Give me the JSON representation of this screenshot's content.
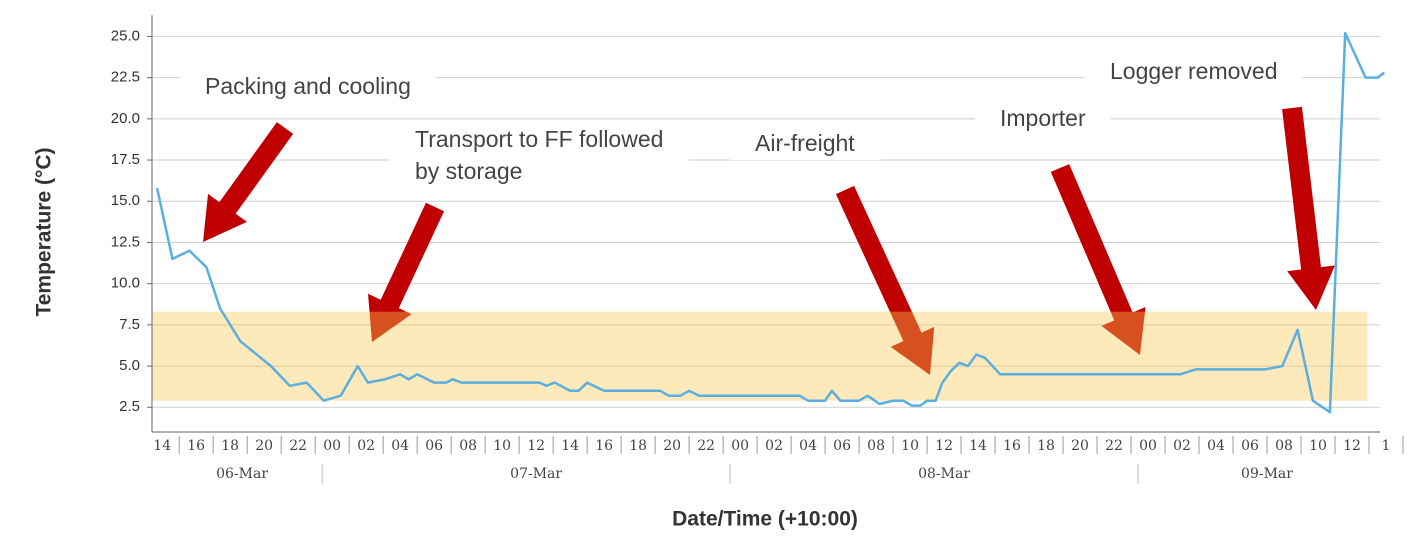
{
  "chart_data": {
    "type": "line",
    "x_label": "Date/Time (+10:00)",
    "y_label": "Temperature (°C)",
    "xlim": [
      13.4,
      86
    ],
    "ylim": [
      1,
      26.3
    ],
    "grid": true,
    "color": "#5aafe0",
    "yticks": [
      2.5,
      {
        "value": 5,
        "label": "5.0"
      },
      7.5,
      {
        "value": 10,
        "label": "10.0"
      },
      12.5,
      {
        "value": 15,
        "label": "15.0"
      },
      17.5,
      {
        "value": 20,
        "label": "20.0"
      },
      22.5,
      {
        "value": 25,
        "label": "25.0"
      }
    ],
    "xticks": [
      {
        "value": 14,
        "label": "14"
      },
      {
        "value": 16,
        "label": "16"
      },
      {
        "value": 18,
        "label": "18"
      },
      {
        "value": 20,
        "label": "20"
      },
      {
        "value": 22,
        "label": "22"
      },
      {
        "value": 24,
        "label": "00"
      },
      {
        "value": 26,
        "label": "02"
      },
      {
        "value": 28,
        "label": "04"
      },
      {
        "value": 30,
        "label": "06"
      },
      {
        "value": 32,
        "label": "08"
      },
      {
        "value": 34,
        "label": "10"
      },
      {
        "value": 36,
        "label": "12"
      },
      {
        "value": 38,
        "label": "14"
      },
      {
        "value": 40,
        "label": "16"
      },
      {
        "value": 42,
        "label": "18"
      },
      {
        "value": 44,
        "label": "20"
      },
      {
        "value": 46,
        "label": "22"
      },
      {
        "value": 48,
        "label": "00"
      },
      {
        "value": 50,
        "label": "02"
      },
      {
        "value": 52,
        "label": "04"
      },
      {
        "value": 54,
        "label": "06"
      },
      {
        "value": 56,
        "label": "08"
      },
      {
        "value": 58,
        "label": "10"
      },
      {
        "value": 60,
        "label": "12"
      },
      {
        "value": 62,
        "label": "14"
      },
      {
        "value": 64,
        "label": "16"
      },
      {
        "value": 66,
        "label": "18"
      },
      {
        "value": 68,
        "label": "20"
      },
      {
        "value": 70,
        "label": "22"
      },
      {
        "value": 72,
        "label": "00"
      },
      {
        "value": 74,
        "label": "02"
      },
      {
        "value": 76,
        "label": "04"
      },
      {
        "value": 78,
        "label": "06"
      },
      {
        "value": 80,
        "label": "08"
      },
      {
        "value": 82,
        "label": "10"
      },
      {
        "value": 84,
        "label": "12"
      },
      {
        "value": 86,
        "label": "1"
      }
    ],
    "dates": [
      "06-Mar",
      "07-Mar",
      "08-Mar",
      "09-Mar"
    ],
    "x": [
      13.7,
      14.6,
      15.6,
      16.6,
      17.4,
      18.6,
      20.4,
      21.5,
      22.5,
      23.5,
      24.5,
      25.5,
      26.1,
      27.1,
      28,
      28.5,
      29,
      30,
      30.7,
      31.1,
      31.6,
      36.2,
      36.6,
      37.1,
      38,
      38.5,
      39,
      40,
      43.3,
      43.8,
      44.5,
      45,
      45.6,
      51.5,
      52,
      53,
      53.4,
      53.9,
      55,
      55.5,
      56.2,
      57,
      57.6,
      58.1,
      58.6,
      59,
      59.5,
      59.9,
      60.4,
      60.9,
      61.4,
      61.9,
      62.4,
      63.3,
      73.9,
      74.8,
      78.9,
      79.9,
      80.8,
      81.7,
      82.7,
      83.6,
      84.8,
      85.5,
      85.9
    ],
    "values": [
      15.8,
      11.5,
      12.0,
      11.0,
      8.5,
      6.5,
      5.0,
      3.8,
      4.0,
      2.9,
      3.2,
      5.0,
      4.0,
      4.2,
      4.5,
      4.2,
      4.5,
      4.0,
      4.0,
      4.2,
      4.0,
      4.0,
      3.8,
      4.0,
      3.5,
      3.5,
      4.0,
      3.5,
      3.5,
      3.2,
      3.2,
      3.5,
      3.2,
      3.2,
      2.9,
      2.9,
      3.5,
      2.9,
      2.9,
      3.2,
      2.7,
      2.9,
      2.9,
      2.6,
      2.6,
      2.9,
      2.9,
      4.0,
      4.7,
      5.2,
      5.0,
      5.7,
      5.5,
      4.5,
      4.5,
      4.8,
      4.8,
      5.0,
      7.2,
      2.9,
      2.2,
      25.2,
      22.5,
      22.5,
      22.8
    ],
    "band": {
      "xlim": [
        13.4,
        84.9
      ],
      "ylim": [
        2.9,
        8.3
      ],
      "color": "#f9c74f"
    },
    "annotations": [
      {
        "lines": [
          "Packing and cooling"
        ]
      },
      {
        "lines": [
          "Transport to FF followed",
          "by storage"
        ]
      },
      {
        "lines": [
          "Air-freight"
        ]
      },
      {
        "lines": [
          "Importer"
        ]
      },
      {
        "lines": [
          "Logger removed"
        ]
      }
    ]
  }
}
